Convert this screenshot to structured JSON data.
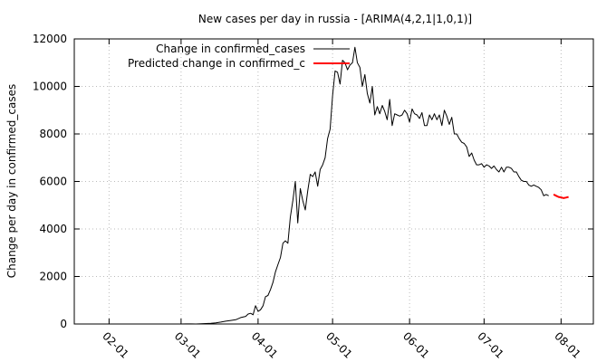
{
  "chart_data": {
    "type": "line",
    "title": "New cases per day in russia -  [ARIMA(4,2,1|1,0,1)]",
    "xlabel": "",
    "ylabel": "Change per day in confirmed_cases",
    "ylim": [
      0,
      12000
    ],
    "yticks": [
      0,
      2000,
      4000,
      6000,
      8000,
      10000,
      12000
    ],
    "xticks": [
      "02-01",
      "03-01",
      "04-01",
      "05-01",
      "06-01",
      "07-01",
      "08-01"
    ],
    "xtick_days": [
      31,
      60,
      91,
      121,
      152,
      182,
      213
    ],
    "xlim_days": [
      17,
      226
    ],
    "grid": true,
    "legend_position": "top-left",
    "series": [
      {
        "name": "Change in confirmed_cases",
        "color": "#000000",
        "points": [
          [
            60,
            0
          ],
          [
            62,
            2
          ],
          [
            64,
            5
          ],
          [
            66,
            0
          ],
          [
            68,
            10
          ],
          [
            70,
            20
          ],
          [
            72,
            30
          ],
          [
            74,
            50
          ],
          [
            76,
            80
          ],
          [
            78,
            120
          ],
          [
            80,
            150
          ],
          [
            82,
            180
          ],
          [
            84,
            270
          ],
          [
            86,
            320
          ],
          [
            87,
            420
          ],
          [
            88,
            450
          ],
          [
            89,
            390
          ],
          [
            90,
            770
          ],
          [
            91,
            530
          ],
          [
            92,
            600
          ],
          [
            93,
            770
          ],
          [
            94,
            1150
          ],
          [
            95,
            1200
          ],
          [
            96,
            1450
          ],
          [
            97,
            1750
          ],
          [
            98,
            2200
          ],
          [
            99,
            2500
          ],
          [
            100,
            2800
          ],
          [
            101,
            3400
          ],
          [
            102,
            3500
          ],
          [
            103,
            3400
          ],
          [
            104,
            4500
          ],
          [
            105,
            5200
          ],
          [
            106,
            6000
          ],
          [
            107,
            4250
          ],
          [
            108,
            5700
          ],
          [
            109,
            5200
          ],
          [
            110,
            4800
          ],
          [
            111,
            5600
          ],
          [
            112,
            6300
          ],
          [
            113,
            6200
          ],
          [
            114,
            6400
          ],
          [
            115,
            5800
          ],
          [
            116,
            6500
          ],
          [
            117,
            6700
          ],
          [
            118,
            7000
          ],
          [
            119,
            7800
          ],
          [
            120,
            8200
          ],
          [
            121,
            9600
          ],
          [
            122,
            10650
          ],
          [
            123,
            10600
          ],
          [
            124,
            10100
          ],
          [
            125,
            11100
          ],
          [
            126,
            11000
          ],
          [
            127,
            10700
          ],
          [
            128,
            10900
          ],
          [
            129,
            11000
          ],
          [
            130,
            11650
          ],
          [
            131,
            11000
          ],
          [
            132,
            10800
          ],
          [
            133,
            10000
          ],
          [
            134,
            10500
          ],
          [
            135,
            9700
          ],
          [
            136,
            9300
          ],
          [
            137,
            10000
          ],
          [
            138,
            8800
          ],
          [
            139,
            9150
          ],
          [
            140,
            8850
          ],
          [
            141,
            9200
          ],
          [
            142,
            8950
          ],
          [
            143,
            8600
          ],
          [
            144,
            9450
          ],
          [
            145,
            8350
          ],
          [
            146,
            8850
          ],
          [
            147,
            8800
          ],
          [
            148,
            8750
          ],
          [
            149,
            8800
          ],
          [
            150,
            9000
          ],
          [
            151,
            8850
          ],
          [
            152,
            8500
          ],
          [
            153,
            9050
          ],
          [
            154,
            8850
          ],
          [
            155,
            8800
          ],
          [
            156,
            8650
          ],
          [
            157,
            8900
          ],
          [
            158,
            8350
          ],
          [
            159,
            8350
          ],
          [
            160,
            8800
          ],
          [
            161,
            8600
          ],
          [
            162,
            8850
          ],
          [
            163,
            8600
          ],
          [
            164,
            8800
          ],
          [
            165,
            8350
          ],
          [
            166,
            9000
          ],
          [
            167,
            8750
          ],
          [
            168,
            8400
          ],
          [
            169,
            8700
          ],
          [
            170,
            8000
          ],
          [
            171,
            8000
          ],
          [
            172,
            7800
          ],
          [
            173,
            7650
          ],
          [
            174,
            7600
          ],
          [
            175,
            7450
          ],
          [
            176,
            7050
          ],
          [
            177,
            7200
          ],
          [
            178,
            6900
          ],
          [
            179,
            6700
          ],
          [
            180,
            6700
          ],
          [
            181,
            6750
          ],
          [
            182,
            6600
          ],
          [
            183,
            6700
          ],
          [
            184,
            6650
          ],
          [
            185,
            6550
          ],
          [
            186,
            6650
          ],
          [
            187,
            6500
          ],
          [
            188,
            6400
          ],
          [
            189,
            6600
          ],
          [
            190,
            6400
          ],
          [
            191,
            6600
          ],
          [
            192,
            6600
          ],
          [
            193,
            6550
          ],
          [
            194,
            6400
          ],
          [
            195,
            6400
          ],
          [
            196,
            6200
          ],
          [
            197,
            6050
          ],
          [
            198,
            6000
          ],
          [
            199,
            6000
          ],
          [
            200,
            5850
          ],
          [
            201,
            5800
          ],
          [
            202,
            5850
          ],
          [
            203,
            5800
          ],
          [
            204,
            5750
          ],
          [
            205,
            5650
          ],
          [
            206,
            5400
          ],
          [
            207,
            5450
          ],
          [
            208,
            5400
          ]
        ]
      },
      {
        "name": "Predicted change in confirmed_c",
        "color": "#ff0000",
        "points": [
          [
            210,
            5450
          ],
          [
            211,
            5400
          ],
          [
            212,
            5350
          ],
          [
            213,
            5330
          ],
          [
            214,
            5300
          ],
          [
            215,
            5320
          ],
          [
            216,
            5350
          ]
        ]
      }
    ]
  }
}
